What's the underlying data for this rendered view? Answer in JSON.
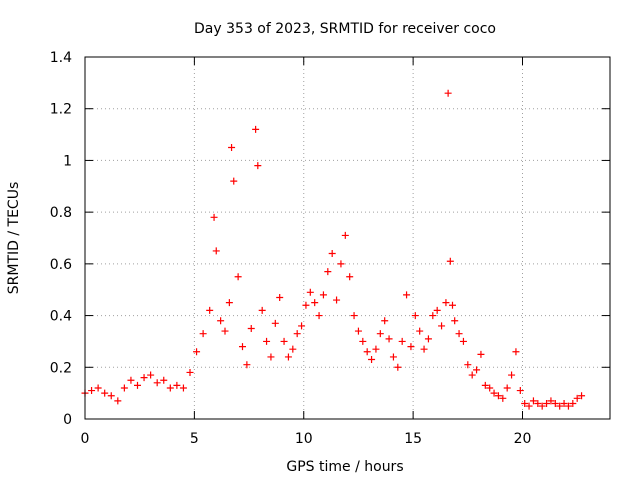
{
  "chart_data": {
    "type": "scatter",
    "title": "Day 353 of 2023, SRMTID for receiver coco",
    "xlabel": "GPS time / hours",
    "ylabel": "SRMTID / TECUs",
    "xlim": [
      0,
      24
    ],
    "ylim": [
      0,
      1.4
    ],
    "x_ticks": [
      0,
      5,
      10,
      15,
      20
    ],
    "x_tick_labels": [
      "0",
      "5",
      "10",
      "15",
      "20"
    ],
    "y_ticks": [
      0,
      0.2,
      0.4,
      0.6,
      0.8,
      1.0,
      1.2,
      1.4
    ],
    "y_tick_labels": [
      "0",
      "0.2",
      "0.4",
      "0.6",
      "0.8",
      "1",
      "1.2",
      "1.4"
    ],
    "grid": true,
    "marker": "+",
    "colors": {
      "series": "#ff0000",
      "grid": "#a0a0a0",
      "axis": "#000000"
    },
    "series": [
      {
        "name": "SRMTID",
        "x": [
          0.0,
          0.3,
          0.6,
          0.9,
          1.2,
          1.5,
          1.8,
          2.1,
          2.4,
          2.7,
          3.0,
          3.3,
          3.6,
          3.9,
          4.2,
          4.5,
          4.8,
          5.1,
          5.4,
          5.7,
          5.9,
          6.0,
          6.2,
          6.4,
          6.6,
          6.7,
          6.8,
          7.0,
          7.2,
          7.4,
          7.6,
          7.8,
          7.9,
          8.1,
          8.3,
          8.5,
          8.7,
          8.9,
          9.1,
          9.3,
          9.5,
          9.7,
          9.9,
          10.1,
          10.3,
          10.5,
          10.7,
          10.9,
          11.1,
          11.3,
          11.5,
          11.7,
          11.9,
          12.1,
          12.3,
          12.5,
          12.7,
          12.9,
          13.1,
          13.3,
          13.5,
          13.7,
          13.9,
          14.1,
          14.3,
          14.5,
          14.7,
          14.9,
          15.1,
          15.3,
          15.5,
          15.7,
          15.9,
          16.1,
          16.3,
          16.5,
          16.6,
          16.7,
          16.8,
          16.9,
          17.1,
          17.3,
          17.5,
          17.7,
          17.9,
          18.1,
          18.3,
          18.5,
          18.7,
          18.9,
          19.1,
          19.3,
          19.5,
          19.7,
          19.9,
          20.1,
          20.3,
          20.5,
          20.7,
          20.9,
          21.1,
          21.3,
          21.5,
          21.7,
          21.9,
          22.1,
          22.3,
          22.5,
          22.7
        ],
        "y": [
          0.1,
          0.11,
          0.12,
          0.1,
          0.09,
          0.07,
          0.12,
          0.15,
          0.13,
          0.16,
          0.17,
          0.14,
          0.15,
          0.12,
          0.13,
          0.12,
          0.18,
          0.26,
          0.33,
          0.42,
          0.78,
          0.65,
          0.38,
          0.34,
          0.45,
          1.05,
          0.92,
          0.55,
          0.28,
          0.21,
          0.35,
          1.12,
          0.98,
          0.42,
          0.3,
          0.24,
          0.37,
          0.47,
          0.3,
          0.24,
          0.27,
          0.33,
          0.36,
          0.44,
          0.49,
          0.45,
          0.4,
          0.48,
          0.57,
          0.64,
          0.46,
          0.6,
          0.71,
          0.55,
          0.4,
          0.34,
          0.3,
          0.26,
          0.23,
          0.27,
          0.33,
          0.38,
          0.31,
          0.24,
          0.2,
          0.3,
          0.48,
          0.28,
          0.4,
          0.34,
          0.27,
          0.31,
          0.4,
          0.42,
          0.36,
          0.45,
          1.26,
          0.61,
          0.44,
          0.38,
          0.33,
          0.3,
          0.21,
          0.17,
          0.19,
          0.25,
          0.13,
          0.12,
          0.1,
          0.09,
          0.08,
          0.12,
          0.17,
          0.26,
          0.11,
          0.06,
          0.05,
          0.07,
          0.06,
          0.05,
          0.06,
          0.07,
          0.06,
          0.05,
          0.06,
          0.05,
          0.06,
          0.08,
          0.09
        ]
      }
    ]
  }
}
